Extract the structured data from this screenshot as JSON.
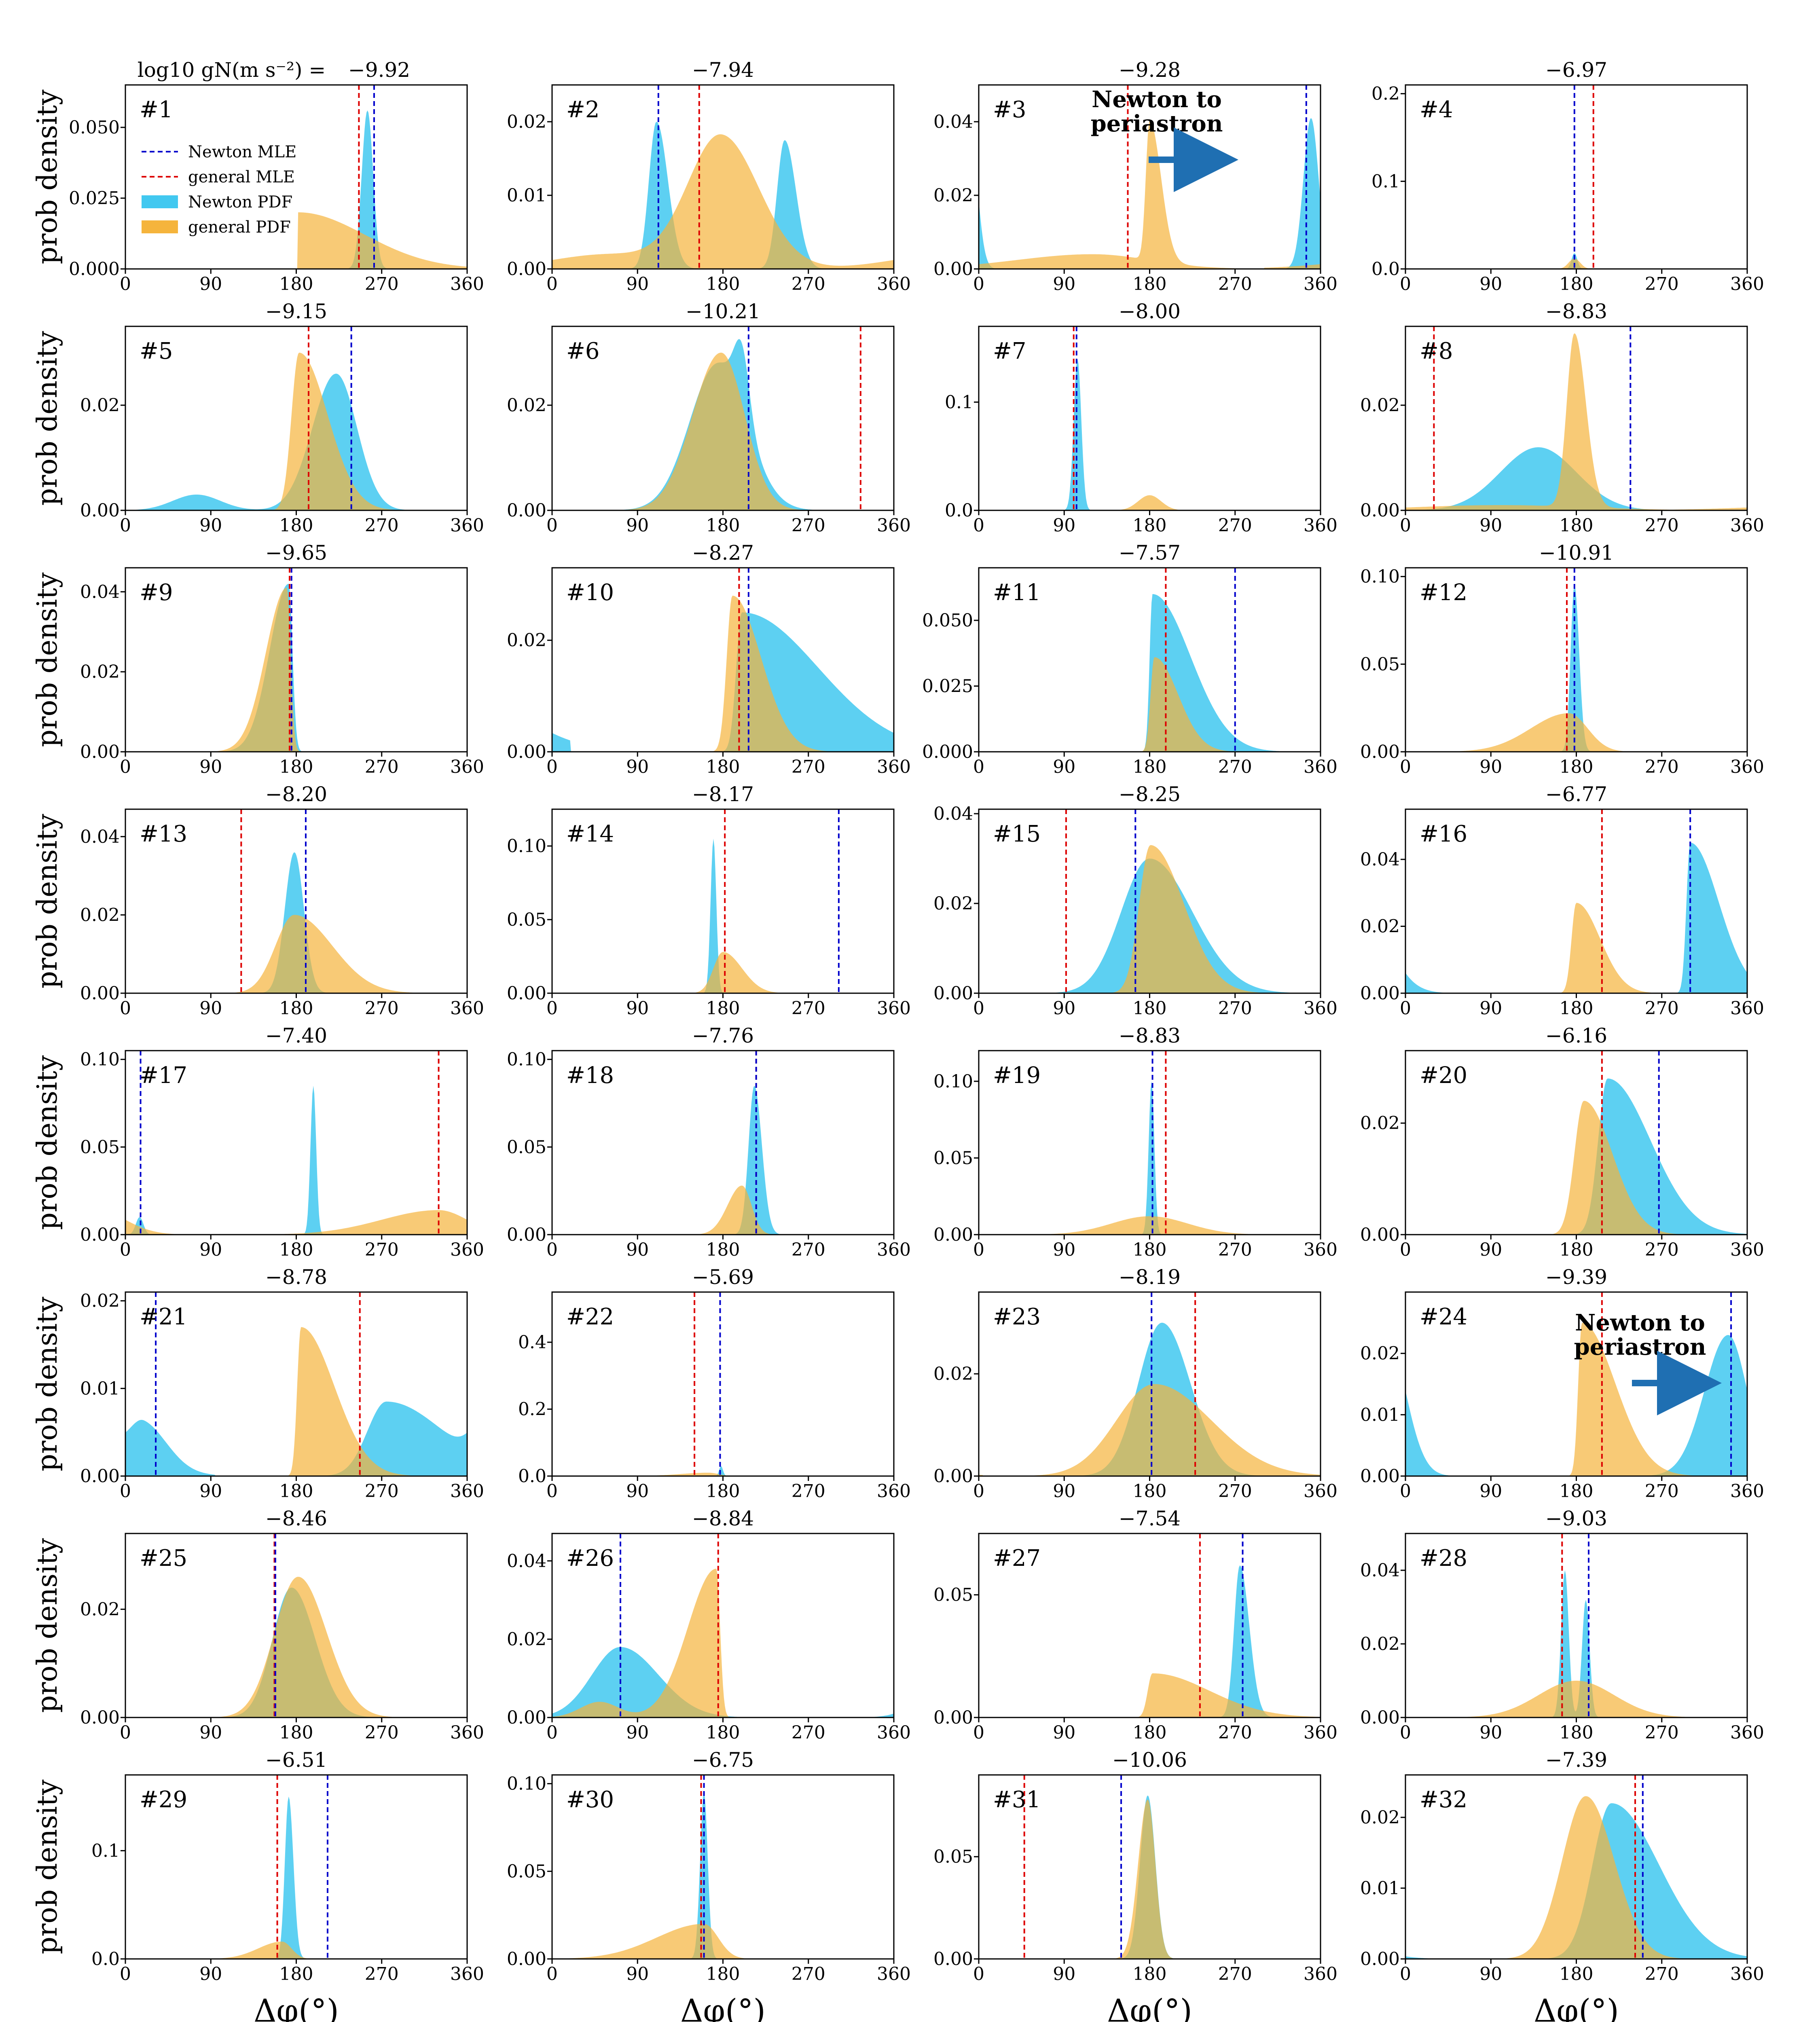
{
  "figure": {
    "x_axis_label": "Δφ(°)",
    "y_axis_label": "prob density",
    "header_prefix": "log10 gN(m s⁻²) = ",
    "x_ticks": [
      0,
      90,
      180,
      270,
      360
    ],
    "legend": {
      "newton_mle": "Newton MLE",
      "general_mle": "general MLE",
      "newton_pdf": "Newton PDF",
      "general_pdf": "general PDF"
    },
    "annotation_text_line1": "Newton to",
    "annotation_text_line2": "periastron",
    "colors": {
      "newton_fill": "#41c8f0",
      "general_fill": "#f5b43c",
      "newton_line": "#0000cc",
      "general_line": "#dd0000",
      "highlight_text": "#e8141c",
      "arrow": "#1f6fb2"
    }
  },
  "chart_data": [
    {
      "id": "#1",
      "header": "−9.92",
      "highlight": true,
      "yticks": [
        "0.000",
        "0.025",
        "0.050"
      ],
      "ymax": 0.065,
      "newton_mle": 262,
      "general_mle": 246,
      "newton_peaks": [
        [
          255,
          0.056,
          6,
          6
        ]
      ],
      "general_peaks": [
        [
          182,
          0.02,
          0.1,
          70
        ]
      ]
    },
    {
      "id": "#2",
      "header": "−7.94",
      "highlight": false,
      "yticks": [
        "0.00",
        "0.01",
        "0.02"
      ],
      "ymax": 0.025,
      "newton_mle": 112,
      "general_mle": 155,
      "newton_peaks": [
        [
          110,
          0.02,
          8,
          12
        ],
        [
          245,
          0.0175,
          8,
          12
        ]
      ],
      "general_peaks": [
        [
          178,
          0.018,
          35,
          40
        ],
        [
          60,
          0.002,
          60,
          60
        ]
      ]
    },
    {
      "id": "#3",
      "header": "−9.28",
      "highlight": true,
      "yticks": [
        "0.00",
        "0.02",
        "0.04"
      ],
      "ymax": 0.05,
      "newton_mle": 345,
      "general_mle": 157,
      "newton_peaks": [
        [
          350,
          0.041,
          8,
          8
        ]
      ],
      "general_peaks": [
        [
          180,
          0.038,
          4,
          12
        ],
        [
          120,
          0.004,
          80,
          60
        ]
      ],
      "annotation": true
    },
    {
      "id": "#4",
      "header": "−6.97",
      "highlight": false,
      "yticks": [
        "0.0",
        "0.1",
        "0.2"
      ],
      "ymax": 0.21,
      "newton_mle": 178,
      "general_mle": 198,
      "newton_peaks": [
        [
          178,
          0.018,
          3,
          3
        ]
      ],
      "general_peaks": [
        [
          178,
          0.012,
          6,
          6
        ]
      ]
    },
    {
      "id": "#5",
      "header": "−9.15",
      "highlight": true,
      "yticks": [
        "0.00",
        "0.02"
      ],
      "ymax": 0.035,
      "newton_mle": 238,
      "general_mle": 193,
      "newton_peaks": [
        [
          222,
          0.026,
          25,
          22
        ],
        [
          75,
          0.003,
          25,
          25
        ]
      ],
      "general_peaks": [
        [
          183,
          0.03,
          8,
          30
        ]
      ]
    },
    {
      "id": "#6",
      "header": "−10.21",
      "highlight": true,
      "yticks": [
        "0.00",
        "0.02"
      ],
      "ymax": 0.035,
      "newton_mle": 207,
      "general_mle": 325,
      "newton_peaks": [
        [
          175,
          0.028,
          30,
          30
        ],
        [
          200,
          0.012,
          8,
          8
        ]
      ],
      "general_peaks": [
        [
          178,
          0.03,
          30,
          25
        ]
      ]
    },
    {
      "id": "#7",
      "header": "−8.00",
      "highlight": false,
      "yticks": [
        "0.0",
        "0.1"
      ],
      "ymax": 0.17,
      "newton_mle": 103,
      "general_mle": 100,
      "newton_peaks": [
        [
          104,
          0.14,
          4,
          4
        ]
      ],
      "general_peaks": [
        [
          180,
          0.014,
          12,
          12
        ]
      ]
    },
    {
      "id": "#8",
      "header": "−8.83",
      "highlight": false,
      "yticks": [
        "0.00",
        "0.02"
      ],
      "ymax": 0.035,
      "newton_mle": 237,
      "general_mle": 30,
      "newton_peaks": [
        [
          140,
          0.012,
          40,
          40
        ]
      ],
      "general_peaks": [
        [
          178,
          0.033,
          8,
          12
        ],
        [
          100,
          0.001,
          90,
          90
        ]
      ]
    },
    {
      "id": "#9",
      "header": "−9.65",
      "highlight": true,
      "yticks": [
        "0.00",
        "0.02",
        "0.04"
      ],
      "ymax": 0.046,
      "newton_mle": 175,
      "general_mle": 173,
      "newton_peaks": [
        [
          172,
          0.042,
          20,
          4
        ]
      ],
      "general_peaks": [
        [
          170,
          0.041,
          22,
          4
        ]
      ]
    },
    {
      "id": "#10",
      "header": "−8.27",
      "highlight": false,
      "yticks": [
        "0.00",
        "0.02"
      ],
      "ymax": 0.033,
      "newton_mle": 207,
      "general_mle": 197,
      "newton_peaks": [
        [
          200,
          0.025,
          6,
          80
        ]
      ],
      "general_peaks": [
        [
          190,
          0.028,
          6,
          30
        ]
      ]
    },
    {
      "id": "#11",
      "header": "−7.57",
      "highlight": false,
      "yticks": [
        "0.000",
        "0.025",
        "0.050"
      ],
      "ymax": 0.07,
      "newton_mle": 270,
      "general_mle": 197,
      "newton_peaks": [
        [
          183,
          0.06,
          3,
          40
        ]
      ],
      "general_peaks": [
        [
          185,
          0.036,
          4,
          25
        ]
      ]
    },
    {
      "id": "#12",
      "header": "−10.91",
      "highlight": true,
      "yticks": [
        "0.00",
        "0.05",
        "0.10"
      ],
      "ymax": 0.105,
      "newton_mle": 178,
      "general_mle": 170,
      "newton_peaks": [
        [
          178,
          0.095,
          4,
          5
        ]
      ],
      "general_peaks": [
        [
          172,
          0.022,
          40,
          20
        ]
      ]
    },
    {
      "id": "#13",
      "header": "−8.20",
      "highlight": false,
      "yticks": [
        "0.00",
        "0.02",
        "0.04"
      ],
      "ymax": 0.047,
      "newton_mle": 190,
      "general_mle": 122,
      "newton_peaks": [
        [
          178,
          0.036,
          10,
          10
        ]
      ],
      "general_peaks": [
        [
          178,
          0.02,
          20,
          40
        ]
      ]
    },
    {
      "id": "#14",
      "header": "−8.17",
      "highlight": false,
      "yticks": [
        "0.00",
        "0.05",
        "0.10"
      ],
      "ymax": 0.125,
      "newton_mle": 302,
      "general_mle": 182,
      "newton_peaks": [
        [
          170,
          0.105,
          3,
          3
        ]
      ],
      "general_peaks": [
        [
          180,
          0.028,
          10,
          20
        ]
      ]
    },
    {
      "id": "#15",
      "header": "−8.25",
      "highlight": false,
      "yticks": [
        "0.00",
        "0.02",
        "0.04"
      ],
      "ymax": 0.041,
      "newton_mle": 165,
      "general_mle": 92,
      "newton_peaks": [
        [
          180,
          0.03,
          30,
          45
        ]
      ],
      "general_peaks": [
        [
          181,
          0.033,
          12,
          35
        ]
      ]
    },
    {
      "id": "#16",
      "header": "−6.77",
      "highlight": false,
      "yticks": [
        "0.00",
        "0.02",
        "0.04"
      ],
      "ymax": 0.055,
      "newton_mle": 300,
      "general_mle": 207,
      "newton_peaks": [
        [
          300,
          0.045,
          4,
          30
        ]
      ],
      "general_peaks": [
        [
          180,
          0.027,
          5,
          25
        ]
      ]
    },
    {
      "id": "#17",
      "header": "−7.40",
      "highlight": false,
      "yticks": [
        "0.00",
        "0.05",
        "0.10"
      ],
      "ymax": 0.105,
      "newton_mle": 16,
      "general_mle": 330,
      "newton_peaks": [
        [
          198,
          0.085,
          3,
          3
        ],
        [
          15,
          0.01,
          4,
          4
        ]
      ],
      "general_peaks": [
        [
          330,
          0.014,
          60,
          30
        ]
      ]
    },
    {
      "id": "#18",
      "header": "−7.76",
      "highlight": false,
      "yticks": [
        "0.00",
        "0.05",
        "0.10"
      ],
      "ymax": 0.105,
      "newton_mle": 215,
      "general_mle": 215,
      "newton_peaks": [
        [
          213,
          0.085,
          6,
          8
        ]
      ],
      "general_peaks": [
        [
          200,
          0.028,
          15,
          10
        ]
      ]
    },
    {
      "id": "#19",
      "header": "−8.83",
      "highlight": false,
      "yticks": [
        "0.00",
        "0.05",
        "0.10"
      ],
      "ymax": 0.12,
      "newton_mle": 183,
      "general_mle": 197,
      "newton_peaks": [
        [
          182,
          0.1,
          3,
          3
        ]
      ],
      "general_peaks": [
        [
          180,
          0.012,
          40,
          40
        ]
      ]
    },
    {
      "id": "#20",
      "header": "−6.16",
      "highlight": false,
      "yticks": [
        "0.00",
        "0.02"
      ],
      "ymax": 0.033,
      "newton_mle": 267,
      "general_mle": 207,
      "newton_peaks": [
        [
          213,
          0.028,
          10,
          45
        ]
      ],
      "general_peaks": [
        [
          188,
          0.024,
          10,
          30
        ]
      ]
    },
    {
      "id": "#21",
      "header": "−8.78",
      "highlight": false,
      "yticks": [
        "0.00",
        "0.01",
        "0.02"
      ],
      "ymax": 0.021,
      "newton_mle": 32,
      "general_mle": 247,
      "newton_peaks": [
        [
          20,
          0.0045,
          15,
          25
        ],
        [
          275,
          0.0085,
          20,
          60
        ]
      ],
      "general_peaks": [
        [
          185,
          0.017,
          4,
          35
        ]
      ]
    },
    {
      "id": "#22",
      "header": "−5.69",
      "highlight": false,
      "yticks": [
        "0.0",
        "0.2",
        "0.4"
      ],
      "ymax": 0.55,
      "newton_mle": 177,
      "general_mle": 150,
      "newton_peaks": [
        [
          178,
          0.03,
          2,
          2
        ]
      ],
      "general_peaks": [
        [
          165,
          0.01,
          30,
          10
        ]
      ]
    },
    {
      "id": "#23",
      "header": "−8.19",
      "highlight": false,
      "yticks": [
        "0.00",
        "0.02"
      ],
      "ymax": 0.036,
      "newton_mle": 182,
      "general_mle": 228,
      "newton_peaks": [
        [
          193,
          0.03,
          25,
          30
        ]
      ],
      "general_peaks": [
        [
          185,
          0.018,
          40,
          60
        ]
      ]
    },
    {
      "id": "#24",
      "header": "−9.39",
      "highlight": true,
      "yticks": [
        "0.00",
        "0.01",
        "0.02"
      ],
      "ymax": 0.03,
      "newton_mle": 343,
      "general_mle": 207,
      "newton_peaks": [
        [
          340,
          0.023,
          25,
          20
        ]
      ],
      "general_peaks": [
        [
          186,
          0.025,
          4,
          35
        ]
      ],
      "annotation": true
    },
    {
      "id": "#25",
      "header": "−8.46",
      "highlight": false,
      "yticks": [
        "0.00",
        "0.02"
      ],
      "ymax": 0.034,
      "newton_mle": 158,
      "general_mle": 157,
      "newton_peaks": [
        [
          175,
          0.024,
          20,
          25
        ]
      ],
      "general_peaks": [
        [
          182,
          0.026,
          25,
          30
        ]
      ]
    },
    {
      "id": "#26",
      "header": "−8.84",
      "highlight": false,
      "yticks": [
        "0.00",
        "0.02",
        "0.04"
      ],
      "ymax": 0.047,
      "newton_mle": 72,
      "general_mle": 175,
      "newton_peaks": [
        [
          72,
          0.018,
          30,
          40
        ]
      ],
      "general_peaks": [
        [
          173,
          0.038,
          30,
          4
        ],
        [
          50,
          0.004,
          20,
          20
        ]
      ]
    },
    {
      "id": "#27",
      "header": "−7.54",
      "highlight": false,
      "yticks": [
        "0.00",
        "0.05"
      ],
      "ymax": 0.075,
      "newton_mle": 278,
      "general_mle": 233,
      "newton_peaks": [
        [
          275,
          0.062,
          6,
          10
        ]
      ],
      "general_peaks": [
        [
          183,
          0.018,
          5,
          60
        ]
      ]
    },
    {
      "id": "#28",
      "header": "−9.03",
      "highlight": true,
      "yticks": [
        "0.00",
        "0.02",
        "0.04"
      ],
      "ymax": 0.05,
      "newton_mle": 193,
      "general_mle": 165,
      "newton_peaks": [
        [
          168,
          0.04,
          4,
          4
        ],
        [
          190,
          0.032,
          4,
          4
        ]
      ],
      "general_peaks": [
        [
          180,
          0.01,
          40,
          40
        ]
      ]
    },
    {
      "id": "#29",
      "header": "−6.51",
      "highlight": false,
      "yticks": [
        "0.0",
        "0.1"
      ],
      "ymax": 0.17,
      "newton_mle": 213,
      "general_mle": 160,
      "newton_peaks": [
        [
          172,
          0.15,
          4,
          5
        ]
      ],
      "general_peaks": [
        [
          165,
          0.016,
          25,
          10
        ]
      ]
    },
    {
      "id": "#30",
      "header": "−6.75",
      "highlight": false,
      "yticks": [
        "0.00",
        "0.05",
        "0.10"
      ],
      "ymax": 0.105,
      "newton_mle": 160,
      "general_mle": 157,
      "newton_peaks": [
        [
          160,
          0.095,
          4,
          4
        ]
      ],
      "general_peaks": [
        [
          160,
          0.02,
          50,
          15
        ]
      ]
    },
    {
      "id": "#31",
      "header": "−10.06",
      "highlight": true,
      "yticks": [
        "0.00",
        "0.05"
      ],
      "ymax": 0.09,
      "newton_mle": 150,
      "general_mle": 48,
      "newton_peaks": [
        [
          178,
          0.08,
          8,
          8
        ]
      ],
      "general_peaks": [
        [
          178,
          0.078,
          10,
          8
        ]
      ]
    },
    {
      "id": "#32",
      "header": "−7.39",
      "highlight": false,
      "yticks": [
        "0.00",
        "0.01",
        "0.02"
      ],
      "ymax": 0.026,
      "newton_mle": 250,
      "general_mle": 242,
      "newton_peaks": [
        [
          217,
          0.022,
          20,
          50
        ]
      ],
      "general_peaks": [
        [
          190,
          0.023,
          25,
          30
        ]
      ]
    }
  ]
}
